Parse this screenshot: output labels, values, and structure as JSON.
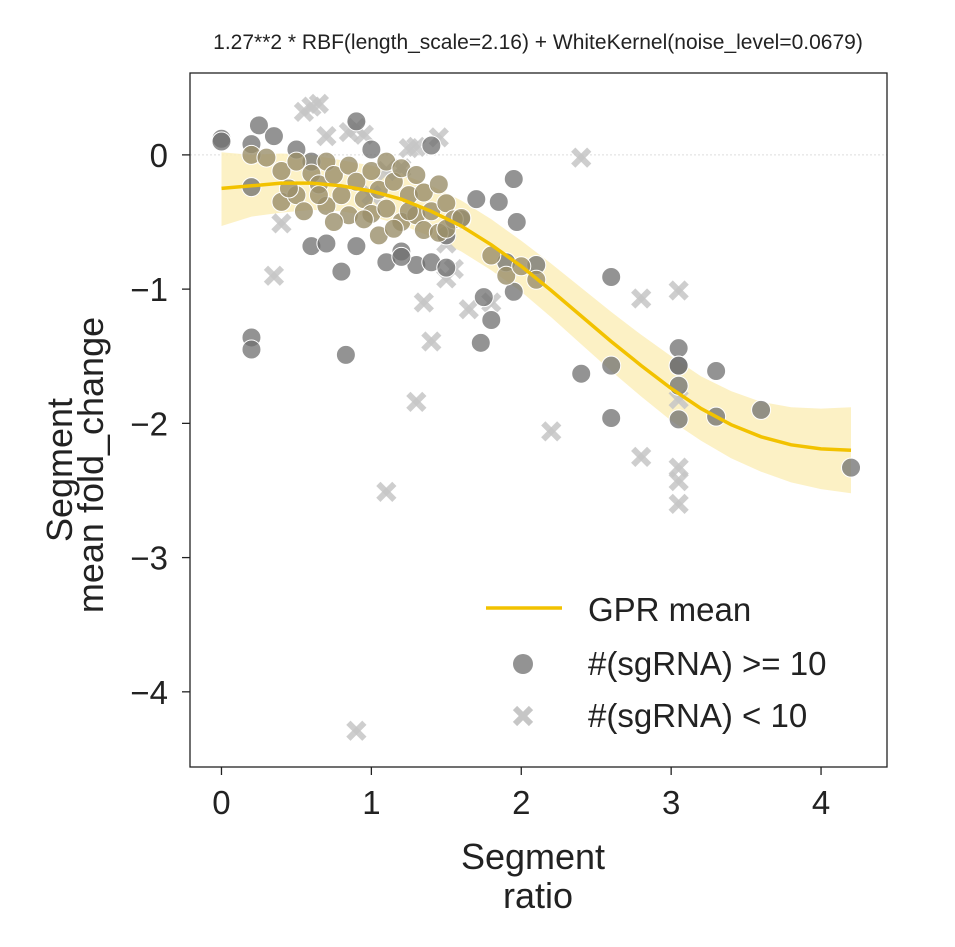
{
  "chart_data": {
    "type": "scatter",
    "title": "1.27**2 * RBF(length_scale=2.16) + WhiteKernel(noise_level=0.0679)",
    "xlabel": [
      "Segment",
      "ratio"
    ],
    "ylabel": [
      "Segment",
      "mean fold_change"
    ],
    "xlim": [
      -0.21,
      4.44
    ],
    "ylim": [
      -4.56,
      0.61
    ],
    "x_ticks": [
      0,
      1,
      2,
      3,
      4
    ],
    "x_tick_labels": [
      "0",
      "1",
      "2",
      "3",
      "4"
    ],
    "y_ticks": [
      0,
      -1,
      -2,
      -3,
      -4
    ],
    "y_tick_labels": [
      "0",
      "−1",
      "−2",
      "−3",
      "−4"
    ],
    "zero_line": true,
    "grid": false,
    "legend_position": "lower-right",
    "legend": [
      {
        "label": "GPR mean",
        "kind": "line"
      },
      {
        "label": "#(sgRNA) >= 10",
        "kind": "circle"
      },
      {
        "label": "#(sgRNA) < 10",
        "kind": "cross"
      }
    ],
    "colors": {
      "gpr_mean": "#f2c200",
      "gpr_band": "#fbeebb",
      "circle": "#6f6f6f",
      "circle_dense": "#9a8f6a",
      "cross": "#c6c6c6",
      "axis": "#222222",
      "zero_line": "#dddddd"
    },
    "gpr_mean": {
      "x": [
        0,
        0.2,
        0.4,
        0.6,
        0.8,
        1.0,
        1.2,
        1.4,
        1.6,
        1.8,
        2.0,
        2.2,
        2.4,
        2.6,
        2.8,
        3.0,
        3.2,
        3.4,
        3.6,
        3.8,
        4.0,
        4.2
      ],
      "y": [
        -0.25,
        -0.23,
        -0.21,
        -0.21,
        -0.23,
        -0.27,
        -0.33,
        -0.42,
        -0.53,
        -0.67,
        -0.83,
        -1.01,
        -1.2,
        -1.39,
        -1.57,
        -1.74,
        -1.89,
        -2.01,
        -2.1,
        -2.16,
        -2.19,
        -2.2
      ],
      "lower": [
        -0.53,
        -0.46,
        -0.43,
        -0.41,
        -0.42,
        -0.46,
        -0.52,
        -0.61,
        -0.72,
        -0.86,
        -1.02,
        -1.21,
        -1.41,
        -1.61,
        -1.8,
        -1.98,
        -2.13,
        -2.26,
        -2.36,
        -2.44,
        -2.49,
        -2.52
      ],
      "upper": [
        0.02,
        0.0,
        0.01,
        0.0,
        -0.04,
        -0.08,
        -0.14,
        -0.23,
        -0.34,
        -0.48,
        -0.64,
        -0.81,
        -0.99,
        -1.17,
        -1.34,
        -1.5,
        -1.65,
        -1.76,
        -1.84,
        -1.88,
        -1.89,
        -1.88
      ]
    },
    "points_ge10": {
      "x": [
        0,
        0,
        0.2,
        0.2,
        0.2,
        0.2,
        0.25,
        0.35,
        0.5,
        0.6,
        0.6,
        0.7,
        0.8,
        0.83,
        0.9,
        0.9,
        1.0,
        1.1,
        1.2,
        1.3,
        1.4,
        1.5,
        1.4,
        1.2,
        1.5,
        1.6,
        1.7,
        1.73,
        1.75,
        1.8,
        1.85,
        1.9,
        1.95,
        1.95,
        1.97,
        2.1,
        2.4,
        2.6,
        2.6,
        2.6,
        3.05,
        3.05,
        3.05,
        3.05,
        3.05,
        3.3,
        3.3,
        3.6,
        4.2
      ],
      "y": [
        0.12,
        0.1,
        0.08,
        -0.24,
        -1.36,
        -1.45,
        0.22,
        0.14,
        0.04,
        -0.68,
        -0.05,
        -0.66,
        -0.87,
        -1.49,
        0.25,
        -0.68,
        0.04,
        -0.8,
        -0.72,
        -0.82,
        -0.8,
        -0.84,
        0.07,
        -0.76,
        -0.6,
        -0.48,
        -0.33,
        -1.4,
        -1.06,
        -1.23,
        -0.35,
        -0.8,
        -0.18,
        -1.02,
        -0.5,
        -0.82,
        -1.63,
        -0.91,
        -1.57,
        -1.96,
        -1.44,
        -1.57,
        -1.72,
        -1.97,
        -1.57,
        -1.61,
        -1.95,
        -1.9,
        -2.33
      ],
      "dense_x": [
        0.2,
        0.3,
        0.4,
        0.4,
        0.5,
        0.5,
        0.55,
        0.6,
        0.65,
        0.7,
        0.7,
        0.75,
        0.8,
        0.85,
        0.85,
        0.9,
        0.95,
        1.0,
        1.0,
        1.05,
        1.1,
        1.1,
        1.15,
        1.2,
        1.2,
        1.25,
        1.3,
        1.3,
        1.35,
        1.4,
        1.45,
        1.5,
        1.55,
        1.6,
        1.8,
        1.9,
        2.0,
        2.1,
        0.65,
        0.75,
        0.95,
        1.05,
        1.15,
        1.25,
        1.35,
        1.45,
        0.45,
        1.5
      ],
      "dense_y": [
        0.0,
        -0.02,
        -0.12,
        -0.35,
        -0.05,
        -0.3,
        -0.42,
        -0.14,
        -0.22,
        -0.05,
        -0.38,
        -0.15,
        -0.3,
        -0.08,
        -0.45,
        -0.2,
        -0.33,
        -0.12,
        -0.44,
        -0.26,
        -0.05,
        -0.4,
        -0.2,
        -0.1,
        -0.5,
        -0.3,
        -0.15,
        -0.45,
        -0.28,
        -0.42,
        -0.22,
        -0.36,
        -0.48,
        -0.47,
        -0.75,
        -0.9,
        -0.83,
        -0.93,
        -0.3,
        -0.5,
        -0.48,
        -0.6,
        -0.55,
        -0.42,
        -0.56,
        -0.58,
        -0.25,
        -0.55
      ]
    },
    "points_lt10": {
      "x": [
        0.35,
        0.4,
        0.55,
        0.6,
        0.65,
        0.7,
        0.85,
        0.9,
        0.95,
        1.0,
        1.1,
        1.2,
        1.25,
        1.3,
        1.3,
        1.35,
        1.4,
        1.45,
        1.5,
        1.5,
        1.55,
        1.65,
        1.8,
        2.2,
        2.4,
        2.8,
        2.8,
        3.05,
        3.05,
        3.05,
        3.05,
        3.05,
        1.1,
        0.9
      ],
      "y": [
        -0.9,
        -0.51,
        0.32,
        0.36,
        0.38,
        0.14,
        0.17,
        0.2,
        0.15,
        -0.3,
        -2.51,
        -0.1,
        0.05,
        -1.84,
        0.06,
        -1.1,
        -1.39,
        0.13,
        -0.92,
        -0.66,
        -0.85,
        -1.15,
        -1.1,
        -2.06,
        -0.02,
        -1.07,
        -2.25,
        -1.01,
        -2.33,
        -2.43,
        -2.6,
        -1.82,
        -0.12,
        -4.29
      ]
    }
  }
}
